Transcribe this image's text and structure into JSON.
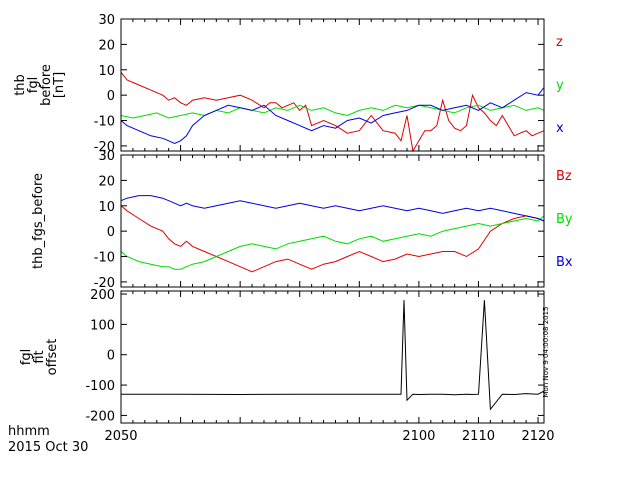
{
  "footer": {
    "time_unit": "hhmm",
    "date": "2015 Oct 30"
  },
  "stamp": "Mon Nov  9 04:00:08 2015",
  "colors": {
    "axis": "#000000",
    "red": "#e00000",
    "green": "#00dd00",
    "blue": "#0000e0"
  },
  "chart_data": [
    {
      "type": "line",
      "ylabel": [
        "thb",
        "fgl",
        "before",
        "[nT]"
      ],
      "ylim": [
        -22,
        30
      ],
      "yticks": [
        -20,
        -10,
        0,
        10,
        20,
        30
      ],
      "xlim": [
        2050,
        2121
      ],
      "series": [
        {
          "name": "z",
          "color": "#e00000",
          "x": [
            2050,
            2051,
            2053,
            2055,
            2057,
            2058,
            2059,
            2060,
            2061,
            2062,
            2064,
            2066,
            2068,
            2070,
            2072,
            2074,
            2075,
            2076,
            2077,
            2078,
            2079,
            2080,
            2081,
            2082,
            2084,
            2086,
            2088,
            2090,
            2092,
            2094,
            2096,
            2097,
            2098,
            2099,
            2100,
            2101,
            2102,
            2103,
            2104,
            2105,
            2106,
            2107,
            2108,
            2109,
            2110,
            2111,
            2112,
            2113,
            2114,
            2115,
            2116,
            2117,
            2118,
            2119,
            2120,
            2121
          ],
          "y": [
            9,
            6,
            4,
            2,
            0,
            -2,
            -1,
            -3,
            -4,
            -2,
            -1,
            -2,
            -1,
            0,
            -2,
            -5,
            -3,
            -3,
            -5,
            -4,
            -3,
            -6,
            -4,
            -12,
            -10,
            -12,
            -15,
            -14,
            -8,
            -14,
            -15,
            -18,
            -8,
            -22,
            -18,
            -14,
            -14,
            -12,
            -2,
            -10,
            -13,
            -14,
            -12,
            0,
            -5,
            -7,
            -10,
            -12,
            -8,
            -12,
            -16,
            -15,
            -14,
            -16,
            -15,
            -14
          ]
        },
        {
          "name": "y",
          "color": "#00dd00",
          "x": [
            2050,
            2052,
            2054,
            2056,
            2058,
            2060,
            2062,
            2064,
            2066,
            2068,
            2070,
            2072,
            2074,
            2076,
            2078,
            2080,
            2082,
            2084,
            2086,
            2088,
            2090,
            2092,
            2094,
            2096,
            2098,
            2100,
            2102,
            2104,
            2106,
            2108,
            2110,
            2112,
            2114,
            2116,
            2118,
            2120,
            2121
          ],
          "y": [
            -8,
            -9,
            -8,
            -7,
            -9,
            -8,
            -7,
            -8,
            -6,
            -7,
            -5,
            -6,
            -7,
            -5,
            -6,
            -4,
            -6,
            -5,
            -7,
            -8,
            -6,
            -5,
            -6,
            -4,
            -5,
            -4,
            -5,
            -6,
            -7,
            -5,
            -4,
            -6,
            -5,
            -4,
            -6,
            -5,
            -6
          ]
        },
        {
          "name": "x",
          "color": "#0000e0",
          "x": [
            2050,
            2051,
            2053,
            2055,
            2057,
            2058,
            2059,
            2060,
            2061,
            2062,
            2064,
            2066,
            2068,
            2070,
            2072,
            2074,
            2076,
            2078,
            2080,
            2082,
            2084,
            2086,
            2088,
            2090,
            2092,
            2094,
            2096,
            2098,
            2100,
            2102,
            2104,
            2106,
            2108,
            2110,
            2112,
            2114,
            2116,
            2118,
            2120,
            2121
          ],
          "y": [
            -10,
            -12,
            -14,
            -16,
            -17,
            -18,
            -19,
            -18,
            -16,
            -12,
            -8,
            -6,
            -4,
            -5,
            -6,
            -4,
            -8,
            -10,
            -12,
            -14,
            -12,
            -13,
            -10,
            -9,
            -11,
            -8,
            -7,
            -6,
            -4,
            -4,
            -6,
            -5,
            -4,
            -6,
            -3,
            -5,
            -2,
            1,
            0,
            3
          ]
        }
      ]
    },
    {
      "type": "line",
      "ylabel": "thb_fgs_before",
      "ylim": [
        -22,
        30
      ],
      "yticks": [
        -20,
        -10,
        0,
        10,
        20,
        30
      ],
      "xlim": [
        2050,
        2121
      ],
      "series": [
        {
          "name": "Bz",
          "color": "#e00000",
          "x": [
            2050,
            2051,
            2053,
            2055,
            2057,
            2058,
            2059,
            2060,
            2061,
            2062,
            2064,
            2066,
            2068,
            2070,
            2072,
            2074,
            2076,
            2078,
            2080,
            2082,
            2084,
            2086,
            2088,
            2090,
            2092,
            2094,
            2096,
            2098,
            2100,
            2102,
            2104,
            2106,
            2108,
            2110,
            2112,
            2114,
            2116,
            2118,
            2120,
            2121
          ],
          "y": [
            10,
            8,
            5,
            2,
            0,
            -3,
            -5,
            -6,
            -4,
            -6,
            -8,
            -10,
            -12,
            -14,
            -16,
            -14,
            -12,
            -11,
            -13,
            -15,
            -13,
            -12,
            -10,
            -8,
            -10,
            -12,
            -11,
            -9,
            -10,
            -9,
            -8,
            -8,
            -10,
            -7,
            0,
            3,
            5,
            6,
            5,
            4
          ]
        },
        {
          "name": "By",
          "color": "#00dd00",
          "x": [
            2050,
            2051,
            2053,
            2055,
            2057,
            2058,
            2059,
            2060,
            2061,
            2062,
            2064,
            2066,
            2068,
            2070,
            2072,
            2074,
            2076,
            2078,
            2080,
            2082,
            2084,
            2086,
            2088,
            2090,
            2092,
            2094,
            2096,
            2098,
            2100,
            2102,
            2104,
            2106,
            2108,
            2110,
            2112,
            2114,
            2116,
            2118,
            2120,
            2121
          ],
          "y": [
            -8,
            -10,
            -12,
            -13,
            -14,
            -14,
            -15,
            -15,
            -14,
            -13,
            -12,
            -10,
            -8,
            -6,
            -5,
            -6,
            -7,
            -5,
            -4,
            -3,
            -2,
            -4,
            -5,
            -3,
            -2,
            -4,
            -3,
            -2,
            -1,
            -2,
            0,
            1,
            2,
            3,
            2,
            3,
            4,
            5,
            4,
            6
          ]
        },
        {
          "name": "Bx",
          "color": "#0000e0",
          "x": [
            2050,
            2051,
            2053,
            2055,
            2057,
            2058,
            2059,
            2060,
            2061,
            2062,
            2064,
            2066,
            2068,
            2070,
            2072,
            2074,
            2076,
            2078,
            2080,
            2082,
            2084,
            2086,
            2088,
            2090,
            2092,
            2094,
            2096,
            2098,
            2100,
            2102,
            2104,
            2106,
            2108,
            2110,
            2112,
            2114,
            2116,
            2118,
            2120,
            2121
          ],
          "y": [
            12,
            13,
            14,
            14,
            13,
            12,
            11,
            10,
            11,
            10,
            9,
            10,
            11,
            12,
            11,
            10,
            9,
            10,
            11,
            10,
            9,
            10,
            9,
            8,
            9,
            10,
            9,
            8,
            9,
            8,
            7,
            8,
            9,
            8,
            9,
            8,
            7,
            6,
            5,
            4
          ]
        }
      ]
    },
    {
      "type": "line",
      "ylabel": [
        "fgl",
        "fit",
        "offset"
      ],
      "ylim": [
        -225,
        210
      ],
      "yticks": [
        -200,
        -100,
        0,
        100,
        200
      ],
      "xlim": [
        2050,
        2121
      ],
      "xticks": [
        2050,
        2100,
        2110,
        2120
      ],
      "series": [
        {
          "name": "",
          "color": "#000000",
          "x": [
            2050,
            2060,
            2070,
            2080,
            2090,
            2097,
            2097.5,
            2098,
            2099,
            2100,
            2102,
            2104,
            2106,
            2108,
            2109,
            2110,
            2111,
            2112,
            2114,
            2116,
            2118,
            2120,
            2121
          ],
          "y": [
            -130,
            -130,
            -131,
            -130,
            -130,
            -130,
            180,
            -150,
            -130,
            -131,
            -130,
            -130,
            -132,
            -130,
            -131,
            -130,
            180,
            -180,
            -130,
            -131,
            -128,
            -130,
            -120
          ]
        }
      ]
    }
  ]
}
